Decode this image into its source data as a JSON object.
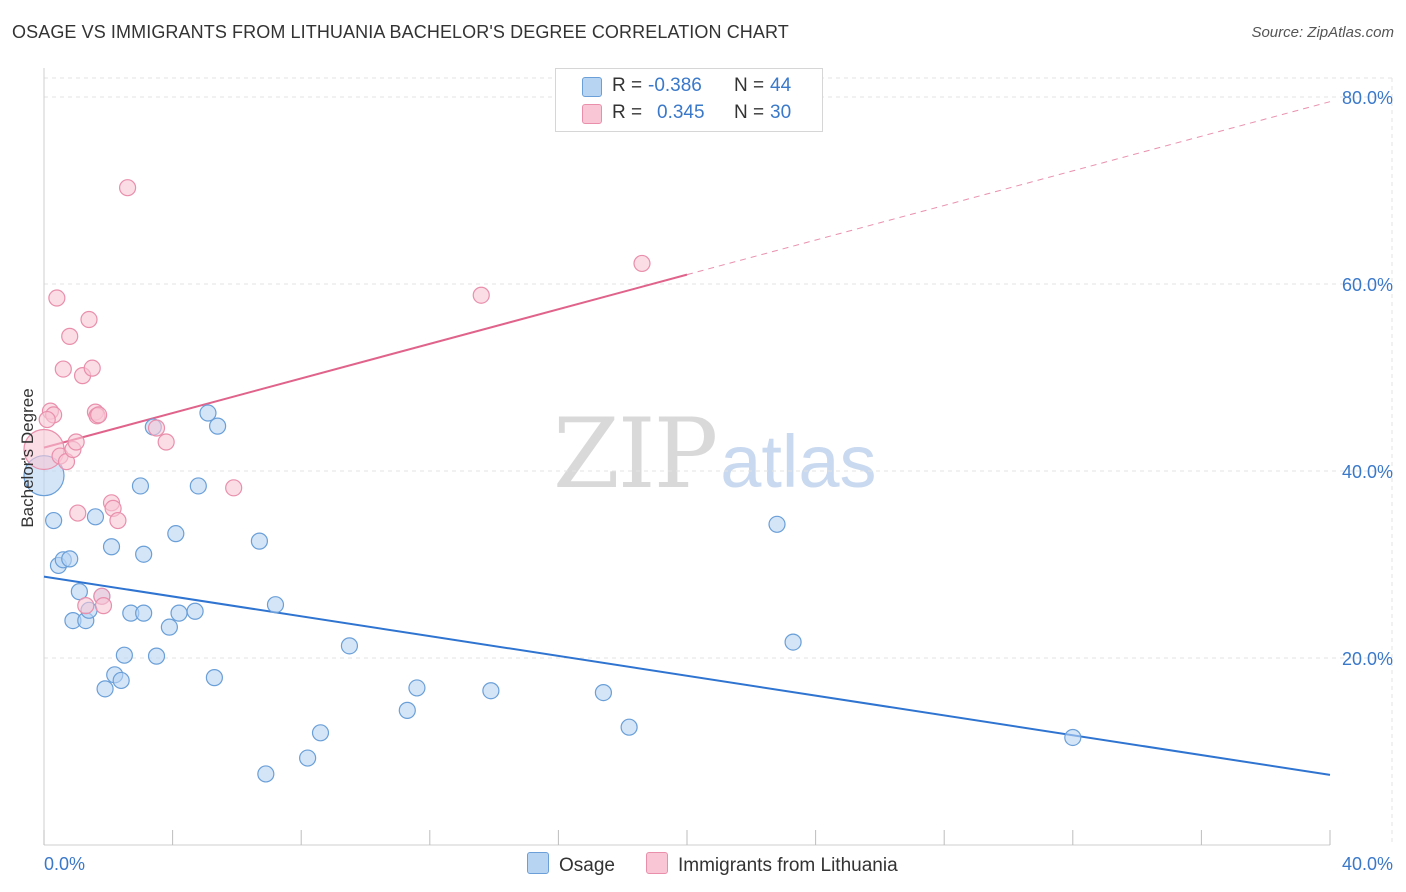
{
  "title": "OSAGE VS IMMIGRANTS FROM LITHUANIA BACHELOR'S DEGREE CORRELATION CHART",
  "source": "Source: ZipAtlas.com",
  "watermark": {
    "zip": "ZIP",
    "atlas": "atlas"
  },
  "colors": {
    "osage_fill": "#b8d4f3",
    "osage_stroke": "#6a9fd8",
    "osage_line": "#2f74d0",
    "lith_fill": "#f9c6d6",
    "lith_stroke": "#e98fac",
    "lith_line": "#e0638b",
    "grid": "#e3e3e3",
    "axis_text": "#3a78c9"
  },
  "legend": {
    "rows": [
      {
        "r_label": "R =",
        "r_value": "-0.386",
        "n_label": "N =",
        "n_value": "44"
      },
      {
        "r_label": "R =",
        "r_value": "0.345",
        "n_label": "N =",
        "n_value": "30"
      }
    ]
  },
  "bottom_legend": {
    "osage": "Osage",
    "lithuania": "Immigrants from Lithuania"
  },
  "chart_data": {
    "type": "scatter",
    "title": "OSAGE VS IMMIGRANTS FROM LITHUANIA BACHELOR'S DEGREE CORRELATION CHART",
    "xlabel": "",
    "ylabel": "Bachelor's Degree",
    "xlim": [
      0,
      40
    ],
    "ylim": [
      0,
      82
    ],
    "x_tick_labels": [
      "0.0%",
      "40.0%"
    ],
    "y_ticks": [
      20,
      40,
      60,
      80
    ],
    "y_tick_labels": [
      "20.0%",
      "40.0%",
      "60.0%",
      "80.0%"
    ],
    "grid": true,
    "series": [
      {
        "name": "Osage",
        "R": -0.386,
        "N": 44,
        "trend": {
          "x0": 0,
          "y0": 28.7,
          "x1": 40,
          "y1": 7.5
        },
        "points": [
          [
            0.0,
            39.5
          ],
          [
            0.3,
            34.7
          ],
          [
            0.45,
            29.9
          ],
          [
            0.6,
            30.5
          ],
          [
            0.8,
            30.6
          ],
          [
            0.9,
            24.0
          ],
          [
            1.1,
            27.1
          ],
          [
            1.3,
            24.0
          ],
          [
            1.4,
            25.1
          ],
          [
            1.6,
            35.1
          ],
          [
            1.8,
            26.6
          ],
          [
            1.9,
            16.7
          ],
          [
            2.1,
            31.9
          ],
          [
            2.2,
            18.2
          ],
          [
            2.4,
            17.6
          ],
          [
            2.5,
            20.3
          ],
          [
            2.7,
            24.8
          ],
          [
            3.0,
            38.4
          ],
          [
            3.1,
            24.8
          ],
          [
            3.1,
            31.1
          ],
          [
            3.4,
            44.7
          ],
          [
            3.5,
            20.2
          ],
          [
            3.9,
            23.3
          ],
          [
            4.1,
            33.3
          ],
          [
            4.2,
            24.8
          ],
          [
            4.7,
            25.0
          ],
          [
            4.8,
            38.4
          ],
          [
            5.1,
            46.2
          ],
          [
            5.3,
            17.9
          ],
          [
            5.4,
            44.8
          ],
          [
            6.7,
            32.5
          ],
          [
            6.9,
            7.6
          ],
          [
            7.2,
            25.7
          ],
          [
            8.2,
            9.3
          ],
          [
            8.6,
            12.0
          ],
          [
            9.5,
            21.3
          ],
          [
            11.3,
            14.4
          ],
          [
            11.6,
            16.8
          ],
          [
            13.9,
            16.5
          ],
          [
            17.4,
            16.3
          ],
          [
            18.2,
            12.6
          ],
          [
            22.8,
            34.3
          ],
          [
            23.3,
            21.7
          ],
          [
            32.0,
            11.5
          ]
        ]
      },
      {
        "name": "Immigrants from Lithuania",
        "R": 0.345,
        "N": 30,
        "trend": {
          "x0": 0,
          "y0": 42.5,
          "x1": 20,
          "y1": 61.0,
          "dashed_to": {
            "x": 40,
            "y": 79.5
          }
        },
        "points": [
          [
            0.0,
            42.3
          ],
          [
            0.2,
            46.4
          ],
          [
            0.3,
            46.0
          ],
          [
            0.4,
            58.5
          ],
          [
            0.5,
            41.6
          ],
          [
            0.6,
            50.9
          ],
          [
            0.7,
            41.0
          ],
          [
            0.8,
            54.4
          ],
          [
            0.9,
            42.3
          ],
          [
            1.0,
            43.1
          ],
          [
            1.05,
            35.5
          ],
          [
            1.2,
            50.2
          ],
          [
            1.3,
            25.6
          ],
          [
            1.4,
            56.2
          ],
          [
            1.5,
            51.0
          ],
          [
            1.6,
            46.3
          ],
          [
            1.65,
            45.9
          ],
          [
            1.7,
            46.0
          ],
          [
            1.8,
            26.6
          ],
          [
            1.85,
            25.6
          ],
          [
            2.1,
            36.6
          ],
          [
            2.15,
            36.0
          ],
          [
            2.3,
            34.7
          ],
          [
            2.6,
            70.3
          ],
          [
            3.5,
            44.6
          ],
          [
            3.8,
            43.1
          ],
          [
            5.9,
            38.2
          ],
          [
            13.6,
            58.8
          ],
          [
            18.6,
            62.2
          ],
          [
            0.1,
            45.5
          ]
        ]
      }
    ]
  }
}
